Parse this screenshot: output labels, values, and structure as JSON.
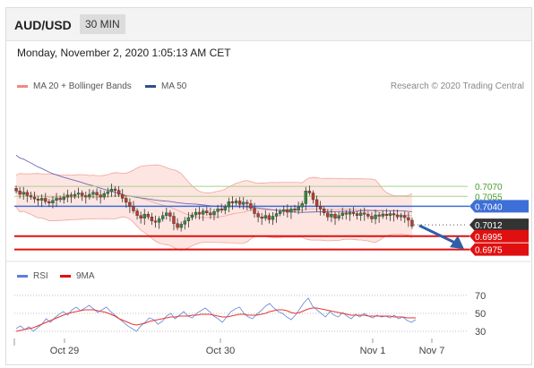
{
  "header": {
    "symbol": "AUD/USD",
    "timeframe": "30 MIN"
  },
  "timestamp": "Monday, November 2, 2020 1:05:13 AM CET",
  "legend": {
    "bb_label": "MA 20 + Bollinger Bands",
    "ma50_label": "MA 50",
    "credit": "Research © 2020 Trading Central",
    "rsi_label": "RSI",
    "ma9_label": "9MA"
  },
  "colors": {
    "up": "#2e8b3d",
    "down": "#c0392b",
    "band_fill": "#fde0dc",
    "band_line": "#f3a39a",
    "ma50": "#6b6bb5",
    "blue_level": "#3d6fd6",
    "red_level": "#e01010",
    "green_level": "#a8d08d",
    "rsi": "#6f8fd8",
    "ma9": "#e53935",
    "arrow": "#2f5fa8",
    "pivot": "#444444"
  },
  "chart_data": [
    {
      "type": "candlestick",
      "x_ticks": [
        "Oct 29",
        "Oct 30",
        "Nov 1",
        "Nov 7"
      ],
      "ylim": [
        0.6965,
        0.7205
      ],
      "levels": [
        {
          "value": 0.707,
          "label": "0.7070",
          "style": "resistance-green"
        },
        {
          "value": 0.7055,
          "label": "0.7055",
          "style": "resistance-green"
        },
        {
          "value": 0.704,
          "label": "0.7040",
          "style": "blue"
        },
        {
          "value": 0.7012,
          "label": "0.7012",
          "style": "pivot-dark"
        },
        {
          "value": 0.6995,
          "label": "0.6995",
          "style": "support-red"
        },
        {
          "value": 0.6975,
          "label": "0.6975",
          "style": "support-red"
        }
      ],
      "series": [
        {
          "name": "MA 20 + Bollinger Bands",
          "type": "band"
        },
        {
          "name": "MA 50",
          "type": "line"
        }
      ],
      "ohlc_close": [
        0.7063,
        0.7058,
        0.7061,
        0.7056,
        0.7054,
        0.7051,
        0.7049,
        0.7052,
        0.7047,
        0.7045,
        0.7049,
        0.7052,
        0.705,
        0.7054,
        0.7057,
        0.7055,
        0.7058,
        0.706,
        0.7056,
        0.7054,
        0.7058,
        0.7061,
        0.7057,
        0.7054,
        0.7059,
        0.7062,
        0.7066,
        0.7064,
        0.7058,
        0.7052,
        0.7046,
        0.704,
        0.7033,
        0.7026,
        0.7022,
        0.7028,
        0.7024,
        0.7018,
        0.7016,
        0.7021,
        0.7026,
        0.703,
        0.7025,
        0.7014,
        0.7008,
        0.7013,
        0.7018,
        0.7023,
        0.7027,
        0.7031,
        0.7028,
        0.7033,
        0.703,
        0.7027,
        0.7032,
        0.7036,
        0.7034,
        0.7039,
        0.7047,
        0.7045,
        0.7048,
        0.7043,
        0.7046,
        0.7044,
        0.7037,
        0.7029,
        0.7024,
        0.7022,
        0.7026,
        0.702,
        0.7025,
        0.7029,
        0.7032,
        0.7035,
        0.7031,
        0.7036,
        0.7034,
        0.7039,
        0.7044,
        0.7063,
        0.706,
        0.705,
        0.704,
        0.7036,
        0.703,
        0.7024,
        0.7028,
        0.7022,
        0.7026,
        0.703,
        0.7028,
        0.7031,
        0.7029,
        0.7026,
        0.703,
        0.7028,
        0.7025,
        0.7021,
        0.7027,
        0.7025,
        0.7028,
        0.7026,
        0.7029,
        0.7027,
        0.7024,
        0.7026,
        0.7023,
        0.7019,
        0.701
      ]
    },
    {
      "type": "line",
      "name": "RSI",
      "ylim": [
        20,
        80
      ],
      "y_ticks": [
        70,
        50,
        30
      ],
      "series": [
        {
          "name": "RSI",
          "values": [
            33,
            36,
            32,
            35,
            30,
            34,
            38,
            44,
            40,
            45,
            49,
            52,
            48,
            54,
            57,
            53,
            56,
            59,
            55,
            51,
            54,
            57,
            52,
            48,
            44,
            40,
            36,
            33,
            30,
            36,
            40,
            45,
            43,
            38,
            41,
            47,
            50,
            44,
            48,
            52,
            47,
            45,
            50,
            53,
            56,
            52,
            47,
            44,
            40,
            46,
            52,
            55,
            57,
            50,
            46,
            44,
            49,
            53,
            58,
            61,
            56,
            52,
            50,
            46,
            43,
            48,
            55,
            62,
            67,
            58,
            54,
            50,
            46,
            52,
            48,
            46,
            51,
            47,
            44,
            49,
            46,
            50,
            47,
            45,
            48,
            46,
            47,
            45,
            48,
            44,
            46,
            42,
            40,
            43
          ]
        },
        {
          "name": "9MA",
          "values": [
            30,
            31,
            32,
            33,
            34,
            36,
            38,
            40,
            42,
            44,
            46,
            48,
            50,
            51,
            52,
            53,
            54,
            54,
            54,
            53,
            52,
            51,
            49,
            47,
            44,
            42,
            40,
            38,
            37,
            38,
            39,
            41,
            42,
            43,
            44,
            45,
            46,
            46,
            47,
            47,
            47,
            48,
            48,
            49,
            49,
            49,
            48,
            47,
            46,
            46,
            47,
            48,
            49,
            49,
            48,
            48,
            48,
            49,
            50,
            52,
            53,
            54,
            54,
            53,
            51,
            50,
            51,
            53,
            55,
            56,
            56,
            55,
            54,
            53,
            52,
            51,
            50,
            49,
            48,
            48,
            48,
            48,
            47,
            47,
            47,
            47,
            47,
            47,
            46,
            46,
            46,
            45,
            45,
            45
          ]
        }
      ]
    }
  ]
}
